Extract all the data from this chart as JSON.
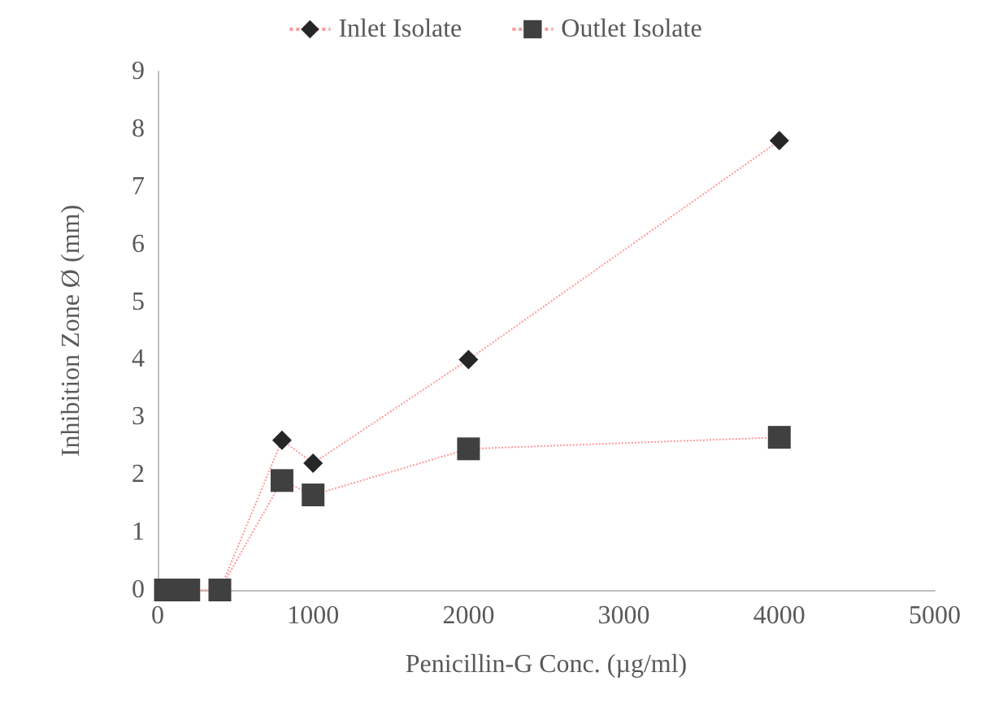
{
  "chart_data": {
    "type": "line",
    "xlabel": "Penicillin-G Conc. (µg/ml)",
    "ylabel": "Inhibition Zone Ø (mm)",
    "x": [
      50,
      100,
      200,
      400,
      800,
      1000,
      2000,
      4000
    ],
    "series": [
      {
        "name": "Inlet Isolate",
        "color": "#262626",
        "marker": "diamond",
        "values": [
          0,
          0,
          0,
          0,
          2.6,
          2.2,
          4.0,
          7.8
        ]
      },
      {
        "name": "Outlet Isolate",
        "color": "#404040",
        "marker": "square",
        "values": [
          0,
          0,
          0,
          0,
          1.9,
          1.65,
          2.45,
          2.65
        ]
      }
    ],
    "line_style": "dotted",
    "xlim": [
      0,
      5000
    ],
    "xticks": [
      0,
      1000,
      2000,
      3000,
      4000,
      5000
    ],
    "ylim": [
      0,
      9
    ],
    "yticks": [
      0,
      1,
      2,
      3,
      4,
      5,
      6,
      7,
      8,
      9
    ],
    "grid": false,
    "legend": "top"
  }
}
